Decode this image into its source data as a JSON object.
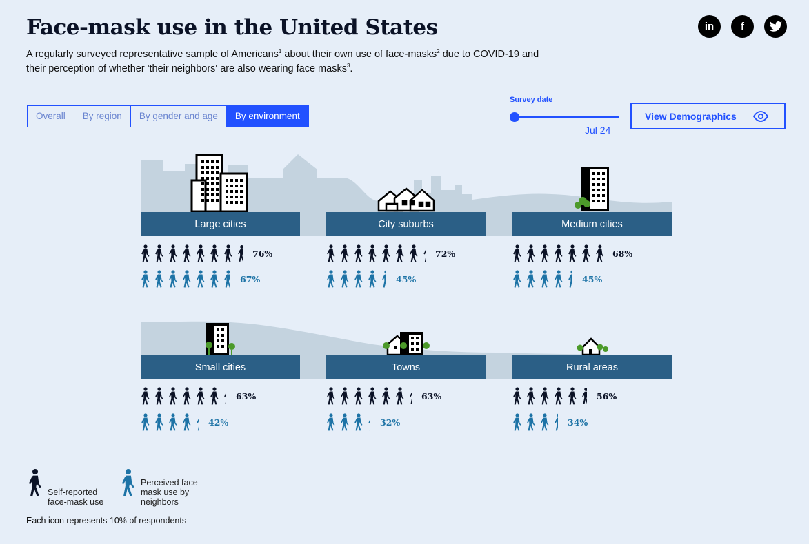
{
  "header": {
    "title": "Face-mask use in the United States",
    "subtitle_parts": [
      {
        "text": "A regularly surveyed representative sample of Americans"
      },
      {
        "sup": "1"
      },
      {
        "text": " about their own use of face-masks"
      },
      {
        "sup": "2"
      },
      {
        "text": " due to COVID-19 and their perception of whether 'their neighbors' are also wearing face masks"
      },
      {
        "sup": "3"
      },
      {
        "text": "."
      }
    ]
  },
  "social": [
    {
      "icon": "linkedin-icon",
      "glyph": "in"
    },
    {
      "icon": "facebook-icon",
      "glyph": "f"
    },
    {
      "icon": "twitter-icon",
      "glyph": "t"
    }
  ],
  "tabs": [
    {
      "label": "Overall",
      "active": false
    },
    {
      "label": "By region",
      "active": false
    },
    {
      "label": "By gender and age",
      "active": false
    },
    {
      "label": "By environment",
      "active": true
    }
  ],
  "survey": {
    "label": "Survey date",
    "value": "Jul 24"
  },
  "view_button": {
    "label": "View Demographics",
    "icon": "eye-icon"
  },
  "colors": {
    "accent": "#2251ff",
    "category_bar": "#2b5f86",
    "self_icon": "#0b1226",
    "neighbor_icon": "#1d73a6",
    "skyline": "#c4d3df",
    "tree": "#4c9a2a"
  },
  "legend": {
    "self_label": "Self-reported face-mask use",
    "neighbor_label": "Perceived face-mask use by neighbors",
    "note": "Each icon represents 10% of respondents"
  },
  "chart_data": {
    "type": "pictograph",
    "unit": "Each icon represents 10% of respondents",
    "categories": [
      "Large cities",
      "City suburbs",
      "Medium cities",
      "Small cities",
      "Towns",
      "Rural areas"
    ],
    "series": [
      {
        "name": "Self-reported face-mask use",
        "values": [
          76,
          72,
          68,
          63,
          63,
          56
        ],
        "labels": [
          "76%",
          "72%",
          "68%",
          "63%",
          "63%",
          "56%"
        ]
      },
      {
        "name": "Perceived face-mask use by neighbors",
        "values": [
          67,
          45,
          45,
          42,
          32,
          34
        ],
        "labels": [
          "67%",
          "45%",
          "45%",
          "42%",
          "32%",
          "34%"
        ]
      }
    ]
  }
}
